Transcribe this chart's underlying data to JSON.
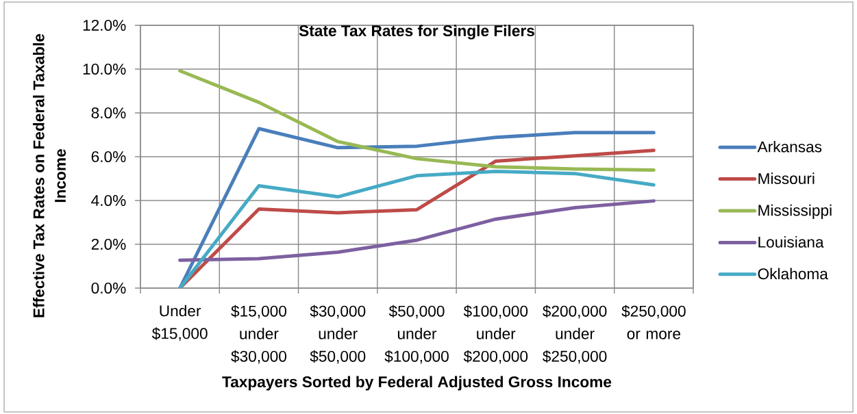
{
  "chart_data": {
    "type": "line",
    "title": "State Tax Rates for Single Filers",
    "xlabel": "Taxpayers Sorted by Federal Adjusted Gross Income",
    "ylabel": "Effective Tax Rates on Federal Taxable Income",
    "categories": [
      "Under $15,000",
      "$15,000 under $30,000",
      "$30,000 under $50,000",
      "$50,000 under $100,000",
      "$100,000 under $200,000",
      "$200,000 under $250,000",
      "$250,000 or more"
    ],
    "series": [
      {
        "name": "Arkansas",
        "color": "#4a7ebb",
        "values": [
          0,
          7.28,
          6.41,
          6.48,
          6.88,
          7.1,
          7.1
        ]
      },
      {
        "name": "Missouri",
        "color": "#be4b48",
        "values": [
          0,
          3.61,
          3.44,
          3.58,
          5.8,
          6.04,
          6.29
        ]
      },
      {
        "name": "Mississippi",
        "color": "#98b954",
        "values": [
          9.92,
          8.48,
          6.69,
          5.91,
          5.54,
          5.44,
          5.39
        ]
      },
      {
        "name": "Louisiana",
        "color": "#7d60a0",
        "values": [
          1.27,
          1.34,
          1.64,
          2.19,
          3.15,
          3.67,
          3.98
        ]
      },
      {
        "name": "Oklahoma",
        "color": "#46aac5",
        "values": [
          0,
          4.67,
          4.17,
          5.13,
          5.33,
          5.23,
          4.71
        ]
      }
    ],
    "ylim": [
      0,
      12
    ],
    "yticks": [
      {
        "value": 0,
        "label": "0.0%"
      },
      {
        "value": 2,
        "label": "2.0%"
      },
      {
        "value": 4,
        "label": "4.0%"
      },
      {
        "value": 6,
        "label": "6.0%"
      },
      {
        "value": 8,
        "label": "8.0%"
      },
      {
        "value": 10,
        "label": "10.0%"
      },
      {
        "value": 12,
        "label": "12.0%"
      }
    ],
    "grid": true,
    "legend": "right",
    "line_style": "solid"
  }
}
